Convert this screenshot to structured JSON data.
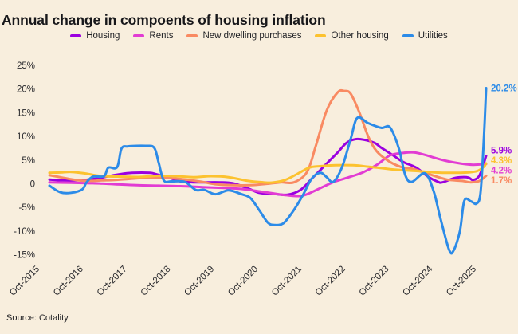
{
  "title": "Annual change in compoents of housing inflation",
  "source": "Source: Cotality",
  "chart_data": {
    "type": "line",
    "title": "Annual change in compoents of housing inflation",
    "grid": false,
    "legend_position": "top",
    "x_axis": {
      "unit": "years from Oct-2015",
      "range": [
        0,
        10
      ],
      "tick_labels": [
        "Oct-2015",
        "Oct-2016",
        "Oct-2017",
        "Oct-2018",
        "Oct-2019",
        "Oct-2020",
        "Oct-2021",
        "Oct-2022",
        "Oct-2023",
        "Oct-2024",
        "Oct-2025"
      ]
    },
    "y_axis": {
      "unit": "% annual change",
      "range": [
        -17,
        27
      ],
      "tick_values": [
        25,
        20,
        15,
        10,
        5,
        0,
        -5,
        -10,
        -15
      ],
      "tick_labels": [
        "25%",
        "20%",
        "15%",
        "10%",
        "5%",
        "0",
        "-5%",
        "-10%",
        "-15%"
      ]
    },
    "series": [
      {
        "name": "Housing",
        "color": "#9b00e0",
        "end_label": "5.9%",
        "end_value": 5.9,
        "points": [
          [
            0,
            0.9
          ],
          [
            0.3,
            0.7
          ],
          [
            0.6,
            0.7
          ],
          [
            1,
            1.0
          ],
          [
            1.3,
            1.5
          ],
          [
            1.6,
            2.0
          ],
          [
            1.9,
            2.3
          ],
          [
            2.3,
            2.3
          ],
          [
            2.45,
            2.0
          ],
          [
            2.8,
            1.1
          ],
          [
            3.0,
            0.5
          ],
          [
            3.3,
            0.3
          ],
          [
            3.9,
            0.3
          ],
          [
            4.2,
            0.1
          ],
          [
            4.5,
            -0.8
          ],
          [
            4.8,
            -1.9
          ],
          [
            5.1,
            -2.1
          ],
          [
            5.45,
            -2.3
          ],
          [
            5.75,
            -1.3
          ],
          [
            6.0,
            1.0
          ],
          [
            6.3,
            3.8
          ],
          [
            6.6,
            6.6
          ],
          [
            6.8,
            8.6
          ],
          [
            7.0,
            9.4
          ],
          [
            7.2,
            9.3
          ],
          [
            7.45,
            8.6
          ],
          [
            7.6,
            7.6
          ],
          [
            7.87,
            6.0
          ],
          [
            8.1,
            4.6
          ],
          [
            8.4,
            3.4
          ],
          [
            8.67,
            1.5
          ],
          [
            8.9,
            0.4
          ],
          [
            9.0,
            0.3
          ],
          [
            9.27,
            1.2
          ],
          [
            9.45,
            1.4
          ],
          [
            9.6,
            1.3
          ],
          [
            9.7,
            0.8
          ],
          [
            9.85,
            1.8
          ],
          [
            10,
            5.9
          ]
        ]
      },
      {
        "name": "Rents",
        "color": "#e23cd3",
        "end_label": "4.2%",
        "end_value": 4.2,
        "points": [
          [
            0,
            0.3
          ],
          [
            0.5,
            0.2
          ],
          [
            1,
            0.1
          ],
          [
            1.5,
            -0.1
          ],
          [
            2,
            -0.3
          ],
          [
            2.5,
            -0.4
          ],
          [
            3,
            -0.5
          ],
          [
            3.5,
            -0.7
          ],
          [
            4,
            -0.9
          ],
          [
            4.4,
            -1.1
          ],
          [
            4.8,
            -1.6
          ],
          [
            5.1,
            -2.0
          ],
          [
            5.4,
            -2.4
          ],
          [
            5.75,
            -2.6
          ],
          [
            6.0,
            -1.8
          ],
          [
            6.3,
            -0.5
          ],
          [
            6.55,
            0.5
          ],
          [
            6.9,
            1.5
          ],
          [
            7.2,
            2.5
          ],
          [
            7.5,
            4.0
          ],
          [
            7.8,
            6.0
          ],
          [
            8.1,
            6.5
          ],
          [
            8.35,
            6.6
          ],
          [
            8.6,
            6.1
          ],
          [
            8.85,
            5.4
          ],
          [
            9.1,
            4.8
          ],
          [
            9.4,
            4.3
          ],
          [
            9.7,
            4.0
          ],
          [
            10,
            4.2
          ]
        ]
      },
      {
        "name": "New dwelling purchases",
        "color": "#f98a62",
        "end_label": "1.7%",
        "end_value": 1.7,
        "points": [
          [
            0,
            1.8
          ],
          [
            0.3,
            1.3
          ],
          [
            0.6,
            0.8
          ],
          [
            0.9,
            0.6
          ],
          [
            1.2,
            0.7
          ],
          [
            1.5,
            0.8
          ],
          [
            1.8,
            1.0
          ],
          [
            2.1,
            1.2
          ],
          [
            2.5,
            1.3
          ],
          [
            2.9,
            1.1
          ],
          [
            3.2,
            0.8
          ],
          [
            3.5,
            0.4
          ],
          [
            3.8,
            -0.1
          ],
          [
            4.2,
            -0.3
          ],
          [
            4.6,
            -0.3
          ],
          [
            5.0,
            0.0
          ],
          [
            5.3,
            0.3
          ],
          [
            5.6,
            0.3
          ],
          [
            5.9,
            2.5
          ],
          [
            6.1,
            8.0
          ],
          [
            6.35,
            15.5
          ],
          [
            6.6,
            19.3
          ],
          [
            6.75,
            19.6
          ],
          [
            6.9,
            19.0
          ],
          [
            7.1,
            15.0
          ],
          [
            7.3,
            10.0
          ],
          [
            7.5,
            6.8
          ],
          [
            7.8,
            4.6
          ],
          [
            8.1,
            3.4
          ],
          [
            8.3,
            3.2
          ],
          [
            8.7,
            2.0
          ],
          [
            9.1,
            0.9
          ],
          [
            9.45,
            0.6
          ],
          [
            9.65,
            0.3
          ],
          [
            9.85,
            0.6
          ],
          [
            10,
            1.7
          ]
        ]
      },
      {
        "name": "Other housing",
        "color": "#fcc22f",
        "end_label": "4.3%",
        "end_value": 4.3,
        "points": [
          [
            0,
            2.3
          ],
          [
            0.3,
            2.4
          ],
          [
            0.5,
            2.5
          ],
          [
            0.8,
            2.2
          ],
          [
            1.05,
            1.8
          ],
          [
            1.3,
            1.55
          ],
          [
            1.7,
            1.5
          ],
          [
            2.1,
            1.45
          ],
          [
            2.5,
            1.7
          ],
          [
            2.9,
            1.6
          ],
          [
            3.3,
            1.4
          ],
          [
            3.7,
            1.6
          ],
          [
            4.1,
            1.4
          ],
          [
            4.55,
            0.6
          ],
          [
            4.9,
            0.3
          ],
          [
            5.1,
            0.25
          ],
          [
            5.4,
            0.8
          ],
          [
            5.7,
            2.2
          ],
          [
            5.95,
            3.4
          ],
          [
            6.2,
            3.7
          ],
          [
            6.55,
            3.9
          ],
          [
            6.95,
            3.9
          ],
          [
            7.3,
            3.6
          ],
          [
            7.6,
            3.3
          ],
          [
            7.9,
            3.0
          ],
          [
            8.4,
            2.7
          ],
          [
            8.8,
            2.4
          ],
          [
            9.2,
            2.3
          ],
          [
            9.6,
            2.4
          ],
          [
            9.8,
            2.7
          ],
          [
            9.95,
            3.6
          ],
          [
            10,
            4.3
          ]
        ]
      },
      {
        "name": "Utilities",
        "color": "#2c8be8",
        "end_label": "20.2%",
        "end_value": 20.2,
        "points": [
          [
            0,
            -0.4
          ],
          [
            0.25,
            -1.8
          ],
          [
            0.5,
            -1.9
          ],
          [
            0.75,
            -1.2
          ],
          [
            0.85,
            0.3
          ],
          [
            1.0,
            1.5
          ],
          [
            1.25,
            1.6
          ],
          [
            1.35,
            3.4
          ],
          [
            1.55,
            3.5
          ],
          [
            1.65,
            7.4
          ],
          [
            1.8,
            7.9
          ],
          [
            2.2,
            8.0
          ],
          [
            2.4,
            7.6
          ],
          [
            2.5,
            4.5
          ],
          [
            2.62,
            0.7
          ],
          [
            2.8,
            0.5
          ],
          [
            3.1,
            0.4
          ],
          [
            3.35,
            -1.3
          ],
          [
            3.55,
            -1.3
          ],
          [
            3.8,
            -2.2
          ],
          [
            4.1,
            -1.4
          ],
          [
            4.4,
            -2.2
          ],
          [
            4.6,
            -3.0
          ],
          [
            4.8,
            -5.5
          ],
          [
            5.0,
            -8.2
          ],
          [
            5.15,
            -8.7
          ],
          [
            5.35,
            -8.4
          ],
          [
            5.55,
            -6.2
          ],
          [
            5.8,
            -2.5
          ],
          [
            6.0,
            1.0
          ],
          [
            6.2,
            2.3
          ],
          [
            6.35,
            1.4
          ],
          [
            6.5,
            0.4
          ],
          [
            6.7,
            3.5
          ],
          [
            6.9,
            9.5
          ],
          [
            7.05,
            13.9
          ],
          [
            7.3,
            12.8
          ],
          [
            7.6,
            11.8
          ],
          [
            7.8,
            11.9
          ],
          [
            8.0,
            7.5
          ],
          [
            8.15,
            1.8
          ],
          [
            8.3,
            0.4
          ],
          [
            8.6,
            2.2
          ],
          [
            8.8,
            -1.6
          ],
          [
            8.95,
            -7.2
          ],
          [
            9.15,
            -13.9
          ],
          [
            9.25,
            -14.2
          ],
          [
            9.4,
            -10.0
          ],
          [
            9.5,
            -3.6
          ],
          [
            9.65,
            -3.7
          ],
          [
            9.78,
            -4.2
          ],
          [
            9.87,
            -2.0
          ],
          [
            9.94,
            8.0
          ],
          [
            10,
            20.2
          ]
        ]
      }
    ]
  }
}
